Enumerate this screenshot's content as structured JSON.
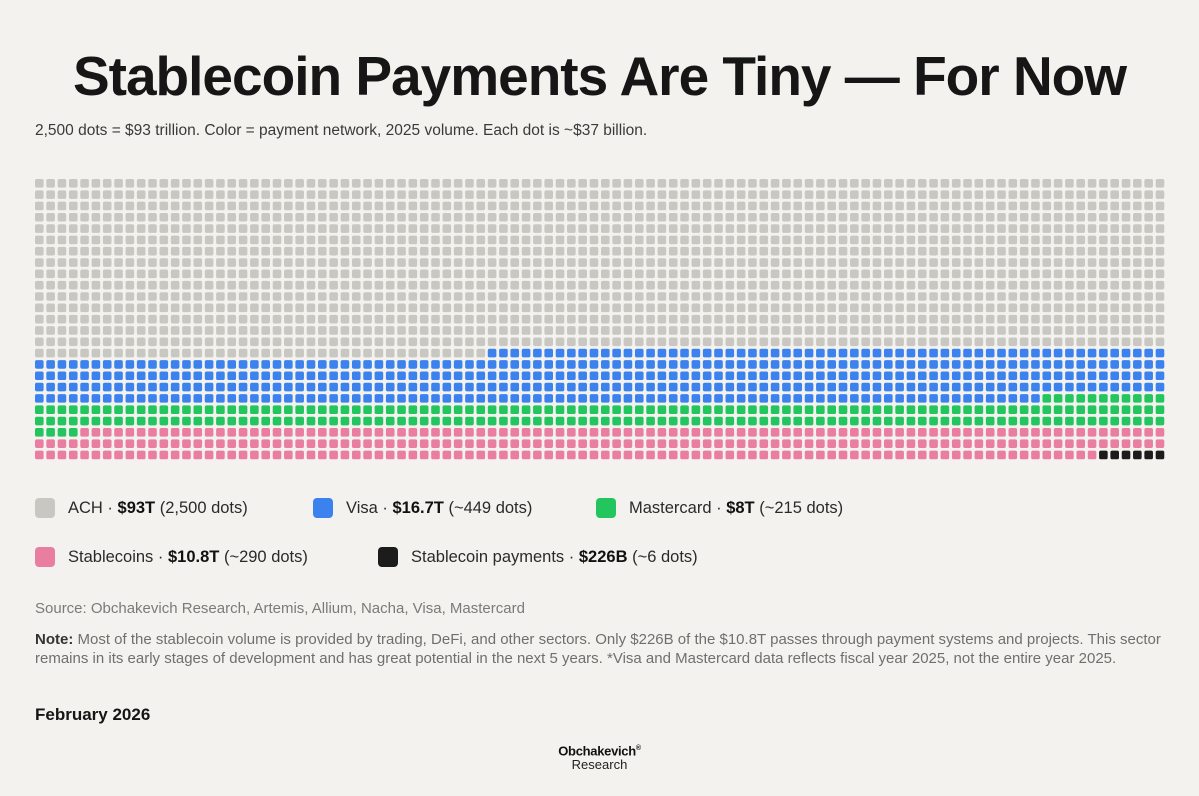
{
  "title": "Stablecoin Payments Are Tiny — For Now",
  "subtitle": "2,500 dots = $93 trillion. Color = payment network, 2025 volume. Each dot is ~$37 billion.",
  "chart_data": {
    "type": "waffle",
    "total_dots": 2500,
    "columns": 100,
    "rows": 25,
    "series": [
      {
        "name": "ACH",
        "value": "$93T",
        "dots": 2500,
        "visible_dots": 1540,
        "color": "#c9c7c2"
      },
      {
        "name": "Visa",
        "value": "$16.7T",
        "dots": 449,
        "color": "#3b82ee"
      },
      {
        "name": "Mastercard",
        "value": "$8T",
        "dots": 215,
        "color": "#22c55e"
      },
      {
        "name": "Stablecoins",
        "value": "$10.8T",
        "dots": 290,
        "color": "#e97ea0"
      },
      {
        "name": "Stablecoin payments",
        "value": "$226B",
        "dots": 6,
        "color": "#1c1c1c"
      }
    ]
  },
  "legend": [
    {
      "name": "ACH",
      "sep": " · ",
      "value": "$93T",
      "count": " (2,500 dots)",
      "color": "#c9c7c2"
    },
    {
      "name": "Visa",
      "sep": " · ",
      "value": "$16.7T",
      "count": " (~449 dots)",
      "color": "#3b82ee"
    },
    {
      "name": "Mastercard",
      "sep": " · ",
      "value": "$8T",
      "count": " (~215 dots)",
      "color": "#22c55e"
    },
    {
      "name": "Stablecoins",
      "sep": " · ",
      "value": "$10.8T",
      "count": " (~290 dots)",
      "color": "#e97ea0"
    },
    {
      "name": "Stablecoin payments",
      "sep": " · ",
      "value": "$226B",
      "count": " (~6 dots)",
      "color": "#1c1c1c"
    }
  ],
  "source": "Source: Obchakevich Research, Artemis, Allium, Nacha, Visa, Mastercard",
  "note_label": "Note:",
  "note_text": " Most of the stablecoin volume is provided by trading, DeFi, and other sectors. Only $226B of the $10.8T passes through payment systems and projects. This sector remains in its early stages of development and has great potential in the next 5 years. *Visa and Mastercard data reflects fiscal year 2025, not the entire year 2025.",
  "date": "February 2026",
  "logo": {
    "line1": "Obchakevich",
    "mark": "®",
    "line2": "Research"
  }
}
